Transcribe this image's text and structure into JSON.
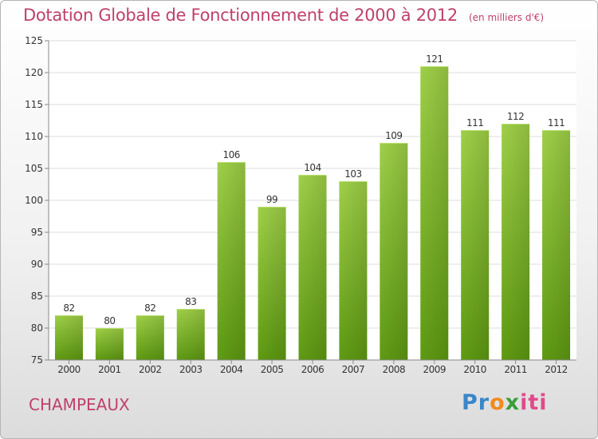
{
  "title": "Dotation Globale de Fonctionnement de 2000 à 2012",
  "unit": "(en milliers d'€)",
  "commune": "CHAMPEAUX",
  "logo": {
    "parts": [
      "Pr",
      "o",
      "x",
      "iti"
    ],
    "colors": [
      "#3a86c8",
      "#f08a1c",
      "#3a9e3a",
      "#e04a8a"
    ]
  },
  "chart_data": {
    "type": "bar",
    "categories": [
      "2000",
      "2001",
      "2002",
      "2003",
      "2004",
      "2005",
      "2006",
      "2007",
      "2008",
      "2009",
      "2010",
      "2011",
      "2012"
    ],
    "values": [
      82,
      80,
      82,
      83,
      106,
      99,
      104,
      103,
      109,
      121,
      111,
      112,
      111
    ],
    "ylim": [
      75,
      125
    ],
    "yticks": [
      75,
      80,
      85,
      90,
      95,
      100,
      105,
      110,
      115,
      120,
      125
    ],
    "grid": true,
    "bar_color": "#7ab828",
    "title": "Dotation Globale de Fonctionnement de 2000 à 2012",
    "xlabel": "",
    "ylabel": ""
  }
}
